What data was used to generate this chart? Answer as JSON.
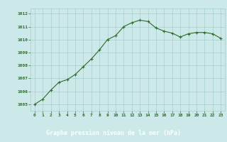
{
  "x": [
    0,
    1,
    2,
    3,
    4,
    5,
    6,
    7,
    8,
    9,
    10,
    11,
    12,
    13,
    14,
    15,
    16,
    17,
    18,
    19,
    20,
    21,
    22,
    23
  ],
  "y": [
    1005.0,
    1005.4,
    1006.1,
    1006.7,
    1006.9,
    1007.3,
    1007.9,
    1008.5,
    1009.2,
    1010.0,
    1010.3,
    1011.0,
    1011.3,
    1011.5,
    1011.4,
    1010.9,
    1010.65,
    1010.5,
    1010.2,
    1010.45,
    1010.55,
    1010.55,
    1010.45,
    1010.1
  ],
  "line_color": "#2d6a2d",
  "marker_color": "#2d6a2d",
  "bg_color": "#cce8e8",
  "plot_bg_color": "#cce8e8",
  "grid_color": "#a8cece",
  "title_bar_color": "#2d6a2d",
  "title_text_color": "#ffffff",
  "tick_color": "#2d6a2d",
  "title": "Graphe pression niveau de la mer (hPa)",
  "ytick_min": 1005,
  "ytick_max": 1012,
  "figsize": [
    3.2,
    2.0
  ],
  "dpi": 100
}
